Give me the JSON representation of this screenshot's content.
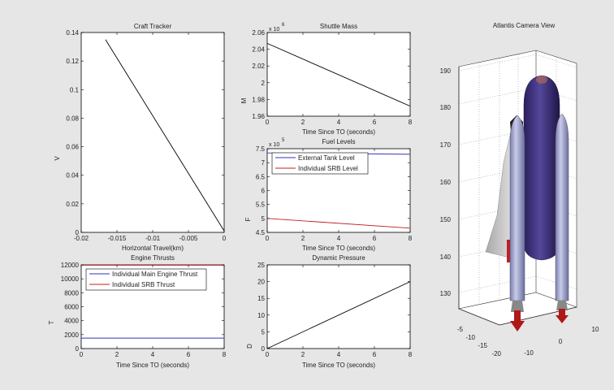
{
  "figure": {
    "background": "#e6e6e6"
  },
  "chart_data": [
    {
      "id": "craft",
      "type": "line",
      "title": "Craft Tracker",
      "xlabel": "Horizontal Travel(km)",
      "ylabel": "V",
      "xlim": [
        -0.02,
        0
      ],
      "ylim": [
        0,
        0.14
      ],
      "xticks": [
        -0.02,
        -0.015,
        -0.01,
        -0.005,
        0
      ],
      "xticklabels": [
        "-0.02",
        "-0.015",
        "-0.01",
        "-0.005",
        "0"
      ],
      "yticks": [
        0,
        0.02,
        0.04,
        0.06,
        0.08,
        0.1,
        0.12,
        0.14
      ],
      "yticklabels": [
        "0",
        "0.02",
        "0.04",
        "0.06",
        "0.08",
        "0.1",
        "0.12",
        "0.14"
      ],
      "series": [
        {
          "x": [
            -0.0166,
            0
          ],
          "y": [
            0.135,
            0.001
          ],
          "color": "#000000"
        }
      ]
    },
    {
      "id": "mass",
      "type": "line",
      "title": "Shuttle Mass",
      "xlabel": "Time Since TO (seconds)",
      "ylabel": "M",
      "exponent": "x 10",
      "exponent_power": "6",
      "xlim": [
        0,
        8
      ],
      "ylim": [
        1.96,
        2.06
      ],
      "xticks": [
        0,
        2,
        4,
        6,
        8
      ],
      "xticklabels": [
        "0",
        "2",
        "4",
        "6",
        "8"
      ],
      "yticks": [
        1.96,
        1.98,
        2,
        2.02,
        2.04,
        2.06
      ],
      "yticklabels": [
        "1.96",
        "1.98",
        "2",
        "2.02",
        "2.04",
        "2.06"
      ],
      "series": [
        {
          "x": [
            0,
            8
          ],
          "y": [
            2.047,
            1.972
          ],
          "color": "#000000"
        }
      ]
    },
    {
      "id": "fuel",
      "type": "line",
      "title": "Fuel Levels",
      "xlabel": "Time Since TO (seconds)",
      "ylabel": "F",
      "exponent": "x 10",
      "exponent_power": "5",
      "xlim": [
        0,
        8
      ],
      "ylim": [
        4.5,
        7.5
      ],
      "xticks": [
        0,
        2,
        4,
        6,
        8
      ],
      "xticklabels": [
        "0",
        "2",
        "4",
        "6",
        "8"
      ],
      "yticks": [
        4.5,
        5,
        5.5,
        6,
        6.5,
        7,
        7.5
      ],
      "yticklabels": [
        "4.5",
        "5",
        "5.5",
        "6",
        "6.5",
        "7",
        "7.5"
      ],
      "legend": {
        "placement": "top-left"
      },
      "series": [
        {
          "name": "External Tank Level",
          "x": [
            0,
            8
          ],
          "y": [
            7.35,
            7.3
          ],
          "color": "#3030c0"
        },
        {
          "name": "Individual SRB Level",
          "x": [
            0,
            8
          ],
          "y": [
            5.0,
            4.65
          ],
          "color": "#c02020"
        }
      ]
    },
    {
      "id": "thrust",
      "type": "line",
      "title": "Engine Thrusts",
      "xlabel": "Time Since TO (seconds)",
      "ylabel": "T",
      "xlim": [
        0,
        8
      ],
      "ylim": [
        0,
        12000
      ],
      "xticks": [
        0,
        2,
        4,
        6,
        8
      ],
      "xticklabels": [
        "0",
        "2",
        "4",
        "6",
        "8"
      ],
      "yticks": [
        0,
        2000,
        4000,
        6000,
        8000,
        10000,
        12000
      ],
      "yticklabels": [
        "0",
        "2000",
        "4000",
        "6000",
        "8000",
        "10000",
        "12000"
      ],
      "legend": {
        "placement": "top-left"
      },
      "series": [
        {
          "name": "Individual Main Engine Thrust",
          "x": [
            0,
            8
          ],
          "y": [
            1500,
            1500
          ],
          "color": "#3030c0"
        },
        {
          "name": "Individual SRB Thrust",
          "x": [
            0,
            8
          ],
          "y": [
            11950,
            11950
          ],
          "color": "#c02020"
        }
      ]
    },
    {
      "id": "pressure",
      "type": "line",
      "title": "Dynamic Pressure",
      "xlabel": "Time Since TO (seconds)",
      "ylabel": "D",
      "xlim": [
        0,
        8
      ],
      "ylim": [
        0,
        25
      ],
      "xticks": [
        0,
        2,
        4,
        6,
        8
      ],
      "xticklabels": [
        "0",
        "2",
        "4",
        "6",
        "8"
      ],
      "yticks": [
        0,
        5,
        10,
        15,
        20,
        25
      ],
      "yticklabels": [
        "0",
        "5",
        "10",
        "15",
        "20",
        "25"
      ],
      "series": [
        {
          "x": [
            0,
            8
          ],
          "y": [
            0,
            20
          ],
          "color": "#000000"
        }
      ]
    }
  ],
  "camera_view": {
    "title": "Atlantis Camera View",
    "zticklabels": [
      "130",
      "140",
      "150",
      "160",
      "170",
      "180",
      "190"
    ],
    "left_ticklabels": [
      "-5",
      "-10",
      "-15",
      "-20"
    ],
    "right_ticklabels": [
      "-10",
      "0",
      "10"
    ],
    "colors": {
      "external_tank": "#3d2f78",
      "booster": "#9ea2cf",
      "orbiter": "#d8d8d8",
      "exhaust": "#b01818"
    }
  }
}
